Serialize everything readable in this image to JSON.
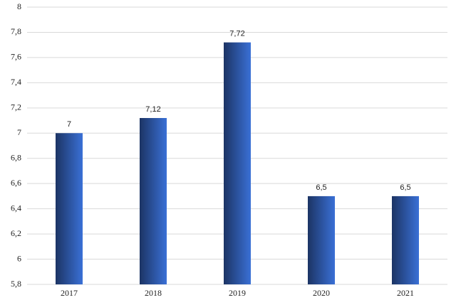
{
  "chart_data": {
    "type": "bar",
    "categories": [
      "2017",
      "2018",
      "2019",
      "2020",
      "2021"
    ],
    "values": [
      7,
      7.12,
      7.72,
      6.5,
      6.5
    ],
    "value_labels": [
      "7",
      "7,12",
      "7,72",
      "6,5",
      "6,5"
    ],
    "color": "#2f5cb0",
    "ylim": [
      5.8,
      8
    ],
    "yticks": [
      {
        "value": 5.8,
        "label": "5,8"
      },
      6,
      {
        "value": 6.2,
        "label": "6,2"
      },
      {
        "value": 6.4,
        "label": "6,4"
      },
      {
        "value": 6.6,
        "label": "6,6"
      },
      {
        "value": 6.8,
        "label": "6,8"
      },
      7,
      {
        "value": 7.2,
        "label": "7,2"
      },
      {
        "value": 7.4,
        "label": "7,4"
      },
      {
        "value": 7.6,
        "label": "7,6"
      },
      {
        "value": 7.8,
        "label": "7,8"
      },
      8
    ],
    "grid": true
  }
}
